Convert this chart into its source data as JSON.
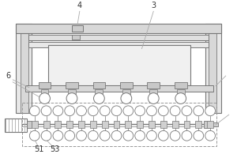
{
  "bg_color": "#ffffff",
  "lc": "#aaaaaa",
  "dc": "#777777",
  "fc_post": "#e0e0e0",
  "fc_rail": "#d8d8d8",
  "fc_box": "#f2f2f2",
  "label_color": "#333333",
  "label_fs": 7,
  "fig_w": 3.0,
  "fig_h": 2.0,
  "dpi": 100
}
